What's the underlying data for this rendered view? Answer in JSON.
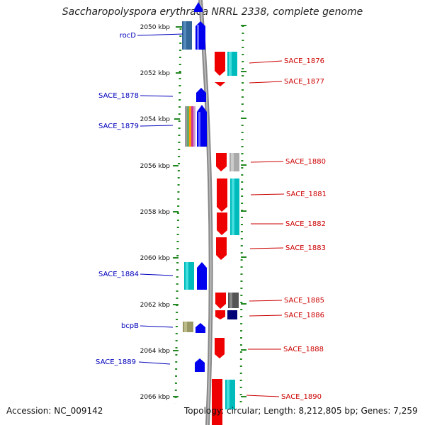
{
  "title": "Saccharopolyspora erythraea NRRL 2338, complete genome",
  "footer": {
    "accession": "Accession: NC_009142",
    "summary": "Topology: circular; Length: 8,212,805 bp; Genes: 7,259"
  },
  "colors": {
    "forward_gene": "#0000ee",
    "reverse_gene": "#ee0000",
    "forward_label": "#0000bb",
    "reverse_label": "#cc0000",
    "backbone": "#888888",
    "ticks": "#228822"
  },
  "ruler": [
    "2050 kbp",
    "2052 kbp",
    "2054 kbp",
    "2056 kbp",
    "2058 kbp",
    "2060 kbp",
    "2062 kbp",
    "2064 kbp",
    "2066 kbp"
  ],
  "forward_labels": [
    "rocD",
    "SACE_1878",
    "SACE_1879",
    "SACE_1884",
    "bcpB",
    "SACE_1889"
  ],
  "reverse_labels": [
    "SACE_1876",
    "SACE_1877",
    "SACE_1880",
    "SACE_1881",
    "SACE_1882",
    "SACE_1883",
    "SACE_1885",
    "SACE_1886",
    "SACE_1888",
    "SACE_1890"
  ]
}
